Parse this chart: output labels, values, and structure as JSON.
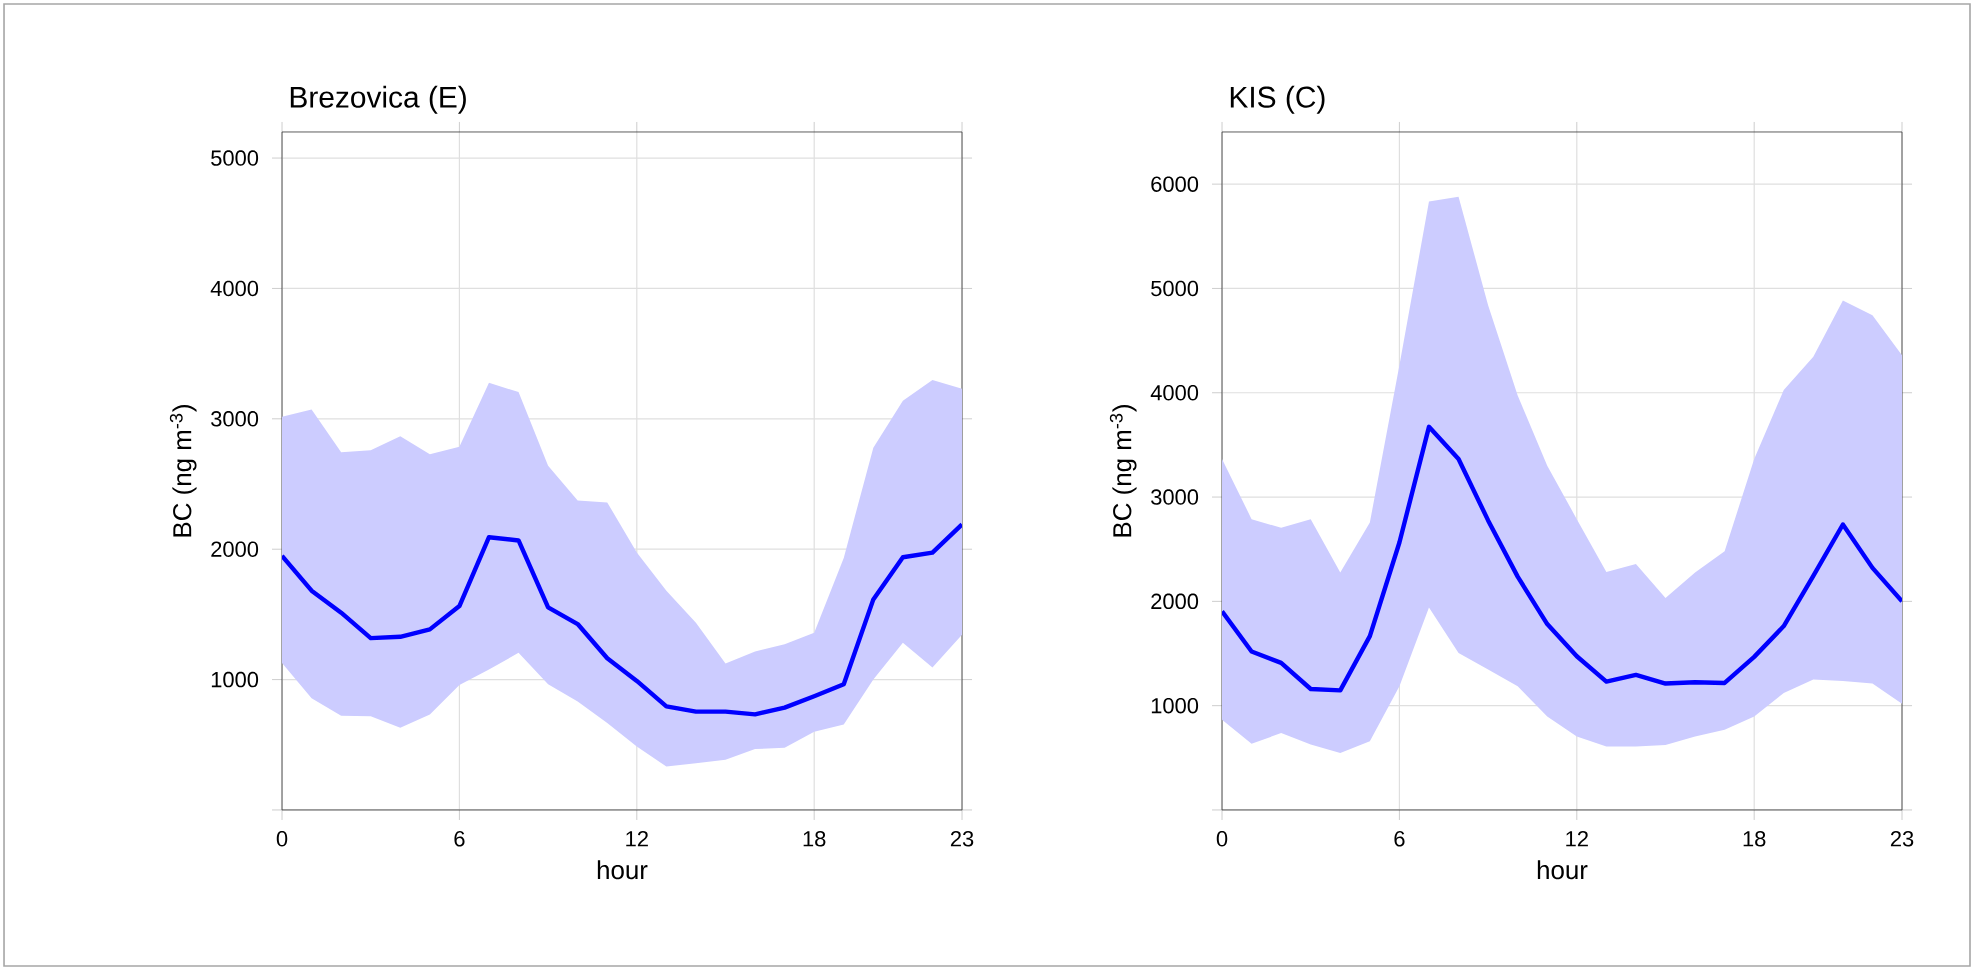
{
  "chart_data": [
    {
      "type": "line",
      "title": "Brezovica (E)",
      "xlabel": "hour",
      "ylabel": "BC (ng m$^{-3}$)",
      "x": [
        0,
        1,
        2,
        3,
        4,
        5,
        6,
        7,
        8,
        9,
        10,
        11,
        12,
        13,
        14,
        15,
        16,
        17,
        18,
        19,
        20,
        21,
        22,
        23
      ],
      "xlim": [
        0,
        23
      ],
      "ylim": [
        0,
        5200
      ],
      "xticks": [
        0,
        6,
        12,
        18,
        23
      ],
      "yticks": [
        {
          "value": 0,
          "label": null
        },
        1000,
        2000,
        3000,
        4000,
        5000
      ],
      "grid": true,
      "series": [
        {
          "color": "#0000ff",
          "values": [
            1949,
            1682,
            1513,
            1318,
            1328,
            1385,
            1564,
            2092,
            2067,
            1554,
            1426,
            1164,
            990,
            795,
            754,
            754,
            733,
            785,
            872,
            964,
            1615,
            1938,
            1974,
            2190
          ],
          "lower": [
            1128,
            856,
            723,
            718,
            631,
            733,
            959,
            1077,
            1205,
            964,
            831,
            667,
            487,
            333,
            359,
            385,
            467,
            477,
            600,
            656,
            1000,
            1282,
            1092,
            1344
          ],
          "upper": [
            3015,
            3072,
            2744,
            2759,
            2867,
            2728,
            2785,
            3277,
            3205,
            2641,
            2374,
            2359,
            1974,
            1682,
            1436,
            1123,
            1215,
            1272,
            1359,
            1933,
            2779,
            3138,
            3297,
            3231
          ]
        }
      ]
    },
    {
      "type": "line",
      "title": "KIS (C)",
      "xlabel": "hour",
      "ylabel": "BC (ng m$^{-3}$)",
      "x": [
        0,
        1,
        2,
        3,
        4,
        5,
        6,
        7,
        8,
        9,
        10,
        11,
        12,
        13,
        14,
        15,
        16,
        17,
        18,
        19,
        20,
        21,
        22,
        23
      ],
      "xlim": [
        0,
        23
      ],
      "ylim": [
        0,
        6500
      ],
      "xticks": [
        0,
        6,
        12,
        18,
        23
      ],
      "yticks": [
        {
          "value": 0,
          "label": null
        },
        1000,
        2000,
        3000,
        4000,
        5000,
        6000
      ],
      "grid": true,
      "series": [
        {
          "color": "#0000ff",
          "values": [
            1904,
            1519,
            1410,
            1160,
            1147,
            1667,
            2564,
            3673,
            3365,
            2776,
            2237,
            1782,
            1474,
            1231,
            1295,
            1212,
            1224,
            1218,
            1468,
            1763,
            2244,
            2737,
            2321,
            2000
          ],
          "lower": [
            865,
            635,
            737,
            628,
            545,
            660,
            1186,
            1942,
            1506,
            1346,
            1186,
            897,
            705,
            609,
            609,
            622,
            705,
            769,
            897,
            1122,
            1250,
            1237,
            1212,
            1019
          ],
          "upper": [
            3365,
            2788,
            2705,
            2788,
            2276,
            2756,
            4263,
            5833,
            5878,
            4840,
            3974,
            3301,
            2788,
            2282,
            2359,
            2032,
            2276,
            2481,
            3365,
            4026,
            4346,
            4885,
            4744,
            4359
          ]
        }
      ]
    }
  ]
}
